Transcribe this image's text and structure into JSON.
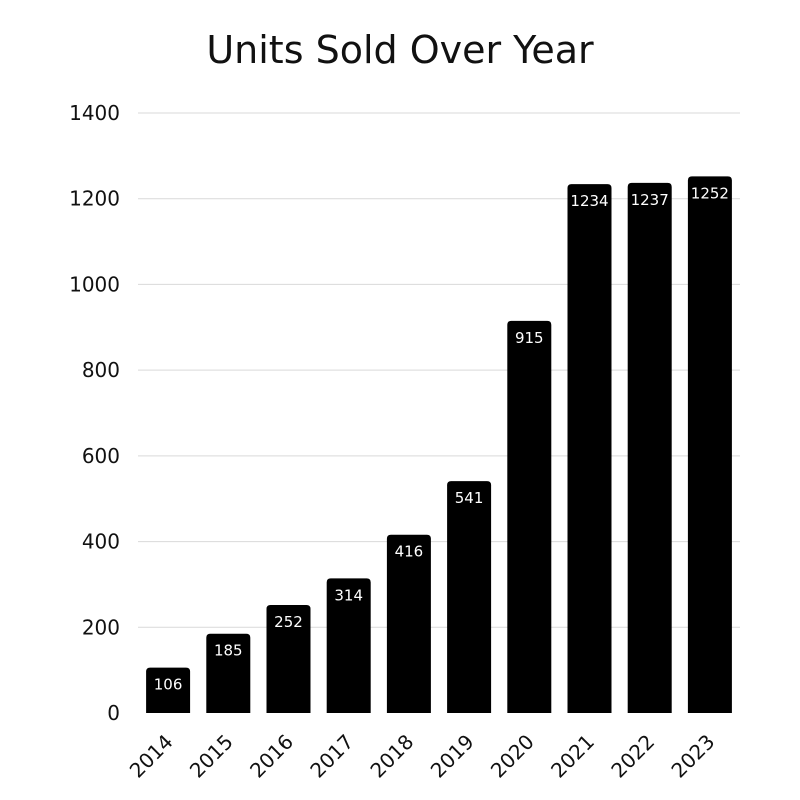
{
  "chart_data": {
    "type": "bar",
    "title": "Units Sold Over Year",
    "xlabel": "",
    "ylabel": "",
    "categories": [
      "2014",
      "2015",
      "2016",
      "2017",
      "2018",
      "2019",
      "2020",
      "2021",
      "2022",
      "2023"
    ],
    "values": [
      106,
      185,
      252,
      314,
      416,
      541,
      915,
      1234,
      1237,
      1252
    ],
    "data_labels": [
      "106",
      "185",
      "252",
      "314",
      "416",
      "541",
      "915",
      "1234",
      "1237",
      "1252"
    ],
    "ylim": [
      0,
      1400
    ],
    "yticks": [
      0,
      200,
      400,
      600,
      800,
      1000,
      1200,
      1400
    ],
    "ytick_labels": [
      "0",
      "200",
      "400",
      "600",
      "800",
      "1000",
      "1200",
      "1400"
    ],
    "grid": true,
    "legend": "none",
    "colors": {
      "bar": "#000000",
      "grid": "#d9d9d9",
      "data_label": "#ffffff",
      "text": "#111111"
    }
  }
}
